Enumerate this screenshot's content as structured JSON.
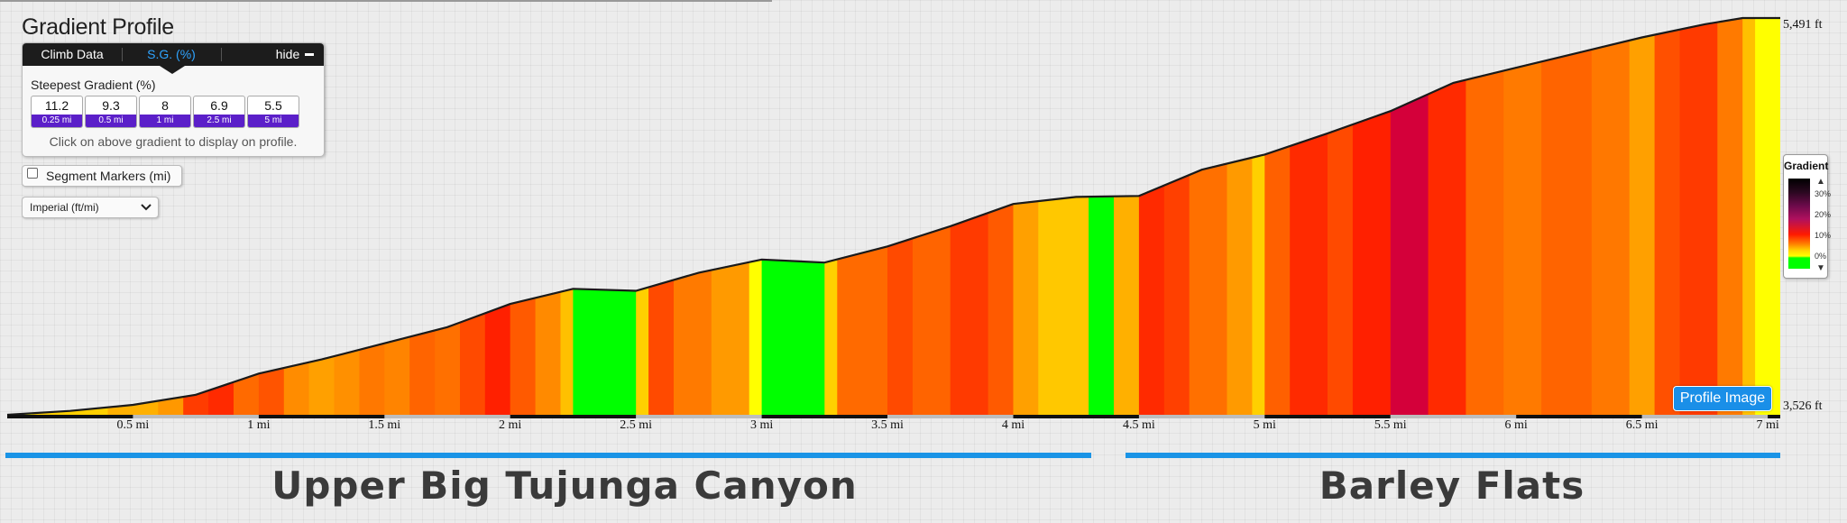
{
  "title": "Gradient Profile",
  "tabs": {
    "climb_data": "Climb Data",
    "sg": "S.G. (%)",
    "hide": "hide"
  },
  "steepest_label": "Steepest Gradient (%)",
  "gradients": [
    {
      "value": "11.2",
      "distance": "0.25 mi"
    },
    {
      "value": "9.3",
      "distance": "0.5 mi"
    },
    {
      "value": "8",
      "distance": "1 mi"
    },
    {
      "value": "6.9",
      "distance": "2.5 mi"
    },
    {
      "value": "5.5",
      "distance": "5 mi"
    }
  ],
  "hint": "Click on above gradient to display on profile.",
  "segment_markers_label": "Segment Markers (mi)",
  "segment_markers_checked": false,
  "units_selected": "Imperial (ft/mi)",
  "elevation": {
    "top": "5,491 ft",
    "bottom": "3,526 ft"
  },
  "legend": {
    "title": "Gradient",
    "ticks": [
      "30%",
      "20%",
      "10%",
      "0%"
    ]
  },
  "profile_image_button": "Profile Image",
  "distance_labels": [
    "0.5 mi",
    "1 mi",
    "1.5 mi",
    "2 mi",
    "2.5 mi",
    "3 mi",
    "3.5 mi",
    "4 mi",
    "4.5 mi",
    "5 mi",
    "5.5 mi",
    "6 mi",
    "6.5 mi",
    "7 mi"
  ],
  "segments": [
    {
      "name": "Upper Big Tujunga Canyon",
      "start_mi": 0,
      "end_mi": 4.3
    },
    {
      "name": "Barley Flats",
      "start_mi": 4.45,
      "end_mi": 7.05
    }
  ],
  "colors": {
    "segment_bar": "#1a94e6",
    "button_blue": "#1a8fe8",
    "gradient_badge": "#5b1fc9"
  },
  "chart_data": {
    "type": "area",
    "x_unit": "mi",
    "y_unit": "ft",
    "x_range": [
      0,
      7.05
    ],
    "y_range": [
      3526,
      5491
    ],
    "profile": [
      [
        0,
        3526
      ],
      [
        0.25,
        3545
      ],
      [
        0.5,
        3575
      ],
      [
        0.75,
        3625
      ],
      [
        1,
        3730
      ],
      [
        1.25,
        3800
      ],
      [
        1.5,
        3880
      ],
      [
        1.75,
        3960
      ],
      [
        2,
        4075
      ],
      [
        2.25,
        4150
      ],
      [
        2.5,
        4140
      ],
      [
        2.75,
        4230
      ],
      [
        3,
        4295
      ],
      [
        3.25,
        4280
      ],
      [
        3.5,
        4360
      ],
      [
        3.75,
        4460
      ],
      [
        4,
        4570
      ],
      [
        4.25,
        4605
      ],
      [
        4.5,
        4610
      ],
      [
        4.75,
        4740
      ],
      [
        5,
        4815
      ],
      [
        5.25,
        4920
      ],
      [
        5.5,
        5030
      ],
      [
        5.75,
        5170
      ],
      [
        6,
        5245
      ],
      [
        6.25,
        5320
      ],
      [
        6.5,
        5395
      ],
      [
        6.75,
        5460
      ],
      [
        6.9,
        5491
      ],
      [
        7.05,
        5491
      ]
    ],
    "gradient_segments": [
      {
        "start": 0,
        "end": 0.1,
        "color": "#ffff00"
      },
      {
        "start": 0.1,
        "end": 0.4,
        "color": "#ffd000"
      },
      {
        "start": 0.4,
        "end": 0.6,
        "color": "#ffb000"
      },
      {
        "start": 0.6,
        "end": 0.7,
        "color": "#ff9800"
      },
      {
        "start": 0.7,
        "end": 0.8,
        "color": "#ff3c00"
      },
      {
        "start": 0.8,
        "end": 0.9,
        "color": "#ff2a00"
      },
      {
        "start": 0.9,
        "end": 1.0,
        "color": "#ff6a00"
      },
      {
        "start": 1.0,
        "end": 1.1,
        "color": "#ff5400"
      },
      {
        "start": 1.1,
        "end": 1.2,
        "color": "#ff8c00"
      },
      {
        "start": 1.2,
        "end": 1.3,
        "color": "#ffa000"
      },
      {
        "start": 1.3,
        "end": 1.4,
        "color": "#ff9000"
      },
      {
        "start": 1.4,
        "end": 1.5,
        "color": "#ff7800"
      },
      {
        "start": 1.5,
        "end": 1.6,
        "color": "#ff8400"
      },
      {
        "start": 1.6,
        "end": 1.7,
        "color": "#ff6400"
      },
      {
        "start": 1.7,
        "end": 1.8,
        "color": "#ff7000"
      },
      {
        "start": 1.8,
        "end": 1.9,
        "color": "#ff4a00"
      },
      {
        "start": 1.9,
        "end": 2.0,
        "color": "#ff2000"
      },
      {
        "start": 2.0,
        "end": 2.1,
        "color": "#ff5a00"
      },
      {
        "start": 2.1,
        "end": 2.2,
        "color": "#ff8a00"
      },
      {
        "start": 2.2,
        "end": 2.25,
        "color": "#ffc000"
      },
      {
        "start": 2.25,
        "end": 2.5,
        "color": "#00ff00"
      },
      {
        "start": 2.5,
        "end": 2.55,
        "color": "#ffd000"
      },
      {
        "start": 2.55,
        "end": 2.65,
        "color": "#ff4a00"
      },
      {
        "start": 2.65,
        "end": 2.8,
        "color": "#ff7a00"
      },
      {
        "start": 2.8,
        "end": 2.95,
        "color": "#ff9a00"
      },
      {
        "start": 2.95,
        "end": 3.0,
        "color": "#ffff00"
      },
      {
        "start": 3.0,
        "end": 3.25,
        "color": "#00ff00"
      },
      {
        "start": 3.25,
        "end": 3.3,
        "color": "#ffd000"
      },
      {
        "start": 3.3,
        "end": 3.5,
        "color": "#ff6a00"
      },
      {
        "start": 3.5,
        "end": 3.6,
        "color": "#ff4a00"
      },
      {
        "start": 3.6,
        "end": 3.75,
        "color": "#ff6400"
      },
      {
        "start": 3.75,
        "end": 3.9,
        "color": "#ff3a00"
      },
      {
        "start": 3.9,
        "end": 4.0,
        "color": "#ff5a00"
      },
      {
        "start": 4.0,
        "end": 4.1,
        "color": "#ffa000"
      },
      {
        "start": 4.1,
        "end": 4.3,
        "color": "#ffc800"
      },
      {
        "start": 4.3,
        "end": 4.4,
        "color": "#00ff00"
      },
      {
        "start": 4.4,
        "end": 4.5,
        "color": "#ffb000"
      },
      {
        "start": 4.5,
        "end": 4.6,
        "color": "#ff2a00"
      },
      {
        "start": 4.6,
        "end": 4.7,
        "color": "#ff4000"
      },
      {
        "start": 4.7,
        "end": 4.85,
        "color": "#ff7000"
      },
      {
        "start": 4.85,
        "end": 4.95,
        "color": "#ff9a00"
      },
      {
        "start": 4.95,
        "end": 5.0,
        "color": "#ffd000"
      },
      {
        "start": 5.0,
        "end": 5.1,
        "color": "#ff6000"
      },
      {
        "start": 5.1,
        "end": 5.25,
        "color": "#ff2a00"
      },
      {
        "start": 5.25,
        "end": 5.35,
        "color": "#ff4a00"
      },
      {
        "start": 5.35,
        "end": 5.5,
        "color": "#ff2000"
      },
      {
        "start": 5.5,
        "end": 5.65,
        "color": "#d4003a"
      },
      {
        "start": 5.65,
        "end": 5.8,
        "color": "#ff2a00"
      },
      {
        "start": 5.8,
        "end": 5.95,
        "color": "#ff6a00"
      },
      {
        "start": 5.95,
        "end": 6.1,
        "color": "#ff7a00"
      },
      {
        "start": 6.1,
        "end": 6.3,
        "color": "#ff6400"
      },
      {
        "start": 6.3,
        "end": 6.45,
        "color": "#ff7800"
      },
      {
        "start": 6.45,
        "end": 6.55,
        "color": "#ffa000"
      },
      {
        "start": 6.55,
        "end": 6.65,
        "color": "#ff5000"
      },
      {
        "start": 6.65,
        "end": 6.8,
        "color": "#ff3a00"
      },
      {
        "start": 6.8,
        "end": 6.9,
        "color": "#ff7a00"
      },
      {
        "start": 6.9,
        "end": 6.95,
        "color": "#ffc000"
      },
      {
        "start": 6.95,
        "end": 7.05,
        "color": "#ffff00"
      }
    ]
  }
}
